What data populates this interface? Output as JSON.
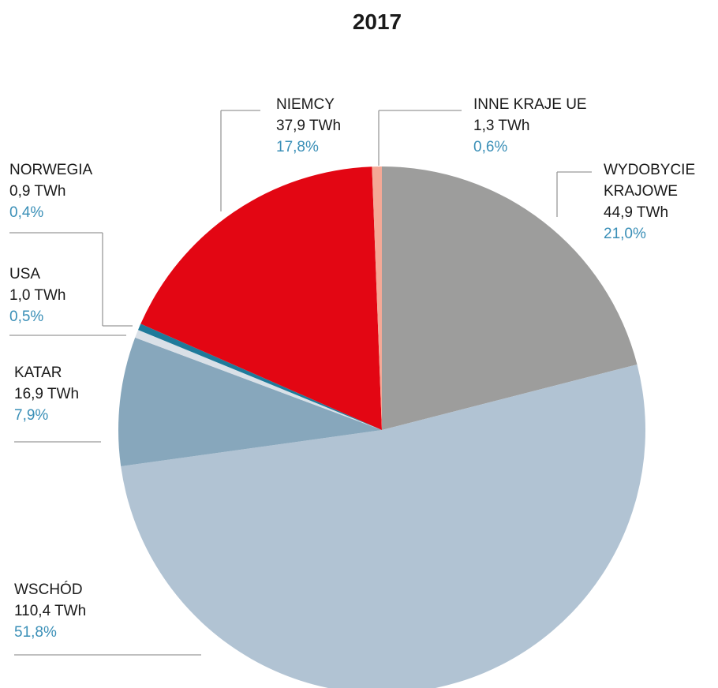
{
  "chart_data": {
    "type": "pie",
    "title": "2017",
    "categories": [
      "WYDOBYCIE KRAJOWE",
      "WSCHÓD",
      "KATAR",
      "USA",
      "NORWEGIA",
      "NIEMCY",
      "INNE KRAJE UE"
    ],
    "values": [
      21.0,
      51.8,
      7.9,
      0.5,
      0.4,
      17.8,
      0.6
    ],
    "value_labels": [
      "21,0%",
      "51,8%",
      "7,9%",
      "0,5%",
      "0,4%",
      "17,8%",
      "0,6%"
    ],
    "twh_values": [
      44.9,
      110.4,
      16.9,
      1.0,
      0.9,
      37.9,
      1.3
    ],
    "twh_labels": [
      "44,9 TWh",
      "110,4 TWh",
      "16,9 TWh",
      "1,0 TWh",
      "0,9 TWh",
      "37,9 TWh",
      "1,3 TWh"
    ],
    "colors": [
      "#9d9d9c",
      "#b1c3d3",
      "#87a7bc",
      "#d9e0e7",
      "#1f7a9a",
      "#e30613",
      "#f4a896"
    ]
  }
}
